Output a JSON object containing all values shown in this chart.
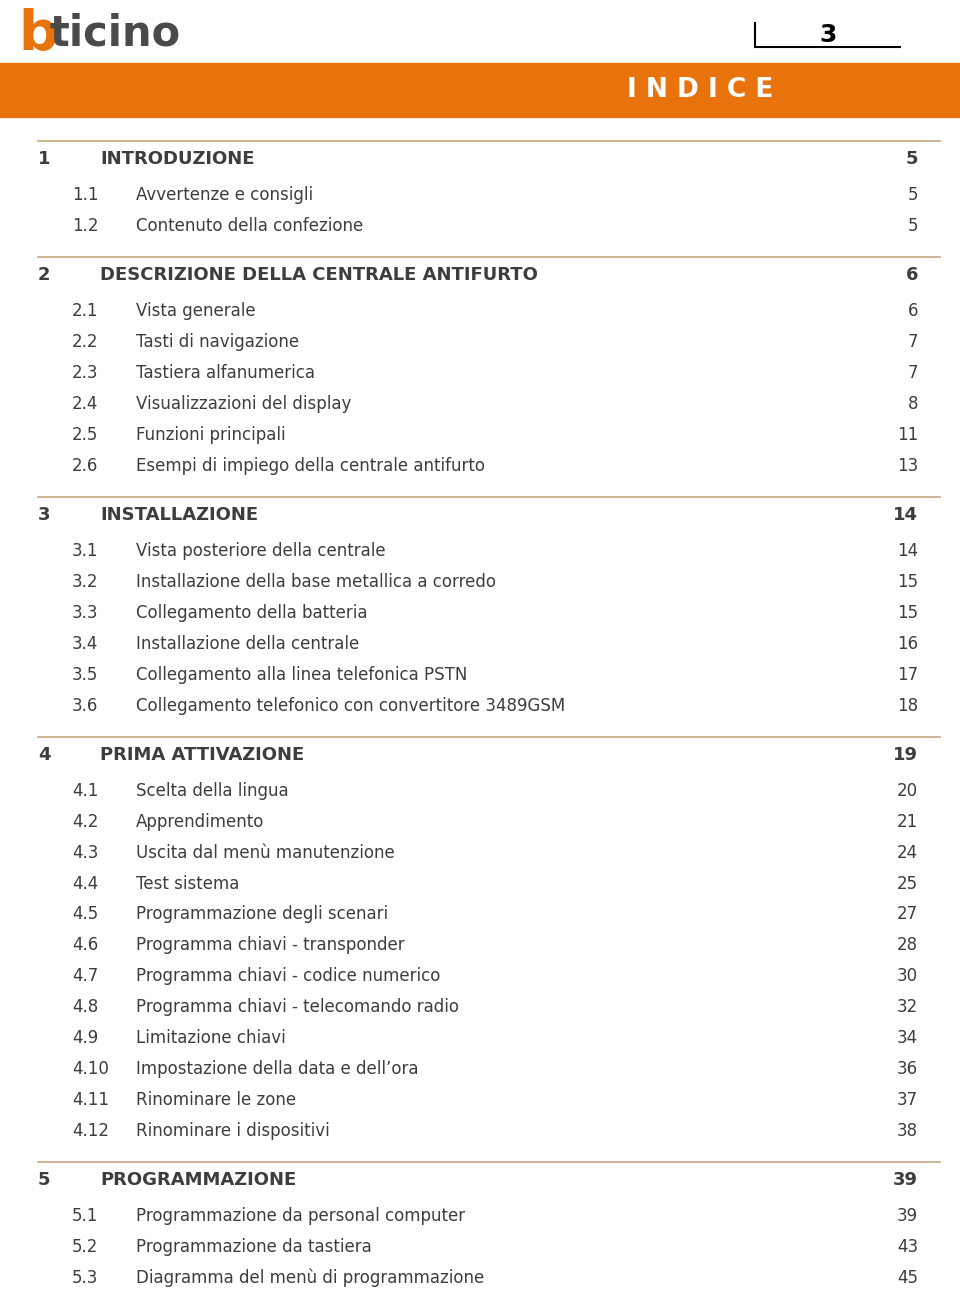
{
  "page_number": "3",
  "bg_color": "#ffffff",
  "orange_color": "#E8720C",
  "header_line_color": "#c8a882",
  "text_color": "#3d3d3d",
  "title_color": "#3d3d3d",
  "indice_text": "I N D I C E",
  "sections": [
    {
      "num": "1",
      "title": "INTRODUZIONE",
      "page": "5",
      "level": 1
    },
    {
      "num": "1.1",
      "title": "Avvertenze e consigli",
      "page": "5",
      "level": 2
    },
    {
      "num": "1.2",
      "title": "Contenuto della confezione",
      "page": "5",
      "level": 2
    },
    {
      "num": "2",
      "title": "DESCRIZIONE DELLA CENTRALE ANTIFURTO",
      "page": "6",
      "level": 1
    },
    {
      "num": "2.1",
      "title": "Vista generale",
      "page": "6",
      "level": 2
    },
    {
      "num": "2.2",
      "title": "Tasti di navigazione",
      "page": "7",
      "level": 2
    },
    {
      "num": "2.3",
      "title": "Tastiera alfanumerica",
      "page": "7",
      "level": 2
    },
    {
      "num": "2.4",
      "title": "Visualizzazioni del display",
      "page": "8",
      "level": 2
    },
    {
      "num": "2.5",
      "title": "Funzioni principali",
      "page": "11",
      "level": 2
    },
    {
      "num": "2.6",
      "title": "Esempi di impiego della centrale antifurto",
      "page": "13",
      "level": 2
    },
    {
      "num": "3",
      "title": "INSTALLAZIONE",
      "page": "14",
      "level": 1
    },
    {
      "num": "3.1",
      "title": "Vista posteriore della centrale",
      "page": "14",
      "level": 2
    },
    {
      "num": "3.2",
      "title": "Installazione della base metallica a corredo",
      "page": "15",
      "level": 2
    },
    {
      "num": "3.3",
      "title": "Collegamento della batteria",
      "page": "15",
      "level": 2
    },
    {
      "num": "3.4",
      "title": "Installazione della centrale",
      "page": "16",
      "level": 2
    },
    {
      "num": "3.5",
      "title": "Collegamento alla linea telefonica PSTN",
      "page": "17",
      "level": 2
    },
    {
      "num": "3.6",
      "title": "Collegamento telefonico con convertitore 3489GSM",
      "page": "18",
      "level": 2
    },
    {
      "num": "4",
      "title": "PRIMA ATTIVAZIONE",
      "page": "19",
      "level": 1
    },
    {
      "num": "4.1",
      "title": "Scelta della lingua",
      "page": "20",
      "level": 2
    },
    {
      "num": "4.2",
      "title": "Apprendimento",
      "page": "21",
      "level": 2
    },
    {
      "num": "4.3",
      "title": "Uscita dal menù manutenzione",
      "page": "24",
      "level": 2
    },
    {
      "num": "4.4",
      "title": "Test sistema",
      "page": "25",
      "level": 2
    },
    {
      "num": "4.5",
      "title": "Programmazione degli scenari",
      "page": "27",
      "level": 2
    },
    {
      "num": "4.6",
      "title": "Programma chiavi - transponder",
      "page": "28",
      "level": 2
    },
    {
      "num": "4.7",
      "title": "Programma chiavi - codice numerico",
      "page": "30",
      "level": 2
    },
    {
      "num": "4.8",
      "title": "Programma chiavi - telecomando radio",
      "page": "32",
      "level": 2
    },
    {
      "num": "4.9",
      "title": "Limitazione chiavi",
      "page": "34",
      "level": 2
    },
    {
      "num": "4.10",
      "title": "Impostazione della data e dell’ora",
      "page": "36",
      "level": 2
    },
    {
      "num": "4.11",
      "title": "Rinominare le zone",
      "page": "37",
      "level": 2
    },
    {
      "num": "4.12",
      "title": "Rinominare i dispositivi",
      "page": "38",
      "level": 2
    },
    {
      "num": "5",
      "title": "PROGRAMMAZIONE",
      "page": "39",
      "level": 1
    },
    {
      "num": "5.1",
      "title": "Programmazione da personal computer",
      "page": "39",
      "level": 2
    },
    {
      "num": "5.2",
      "title": "Programmazione da tastiera",
      "page": "43",
      "level": 2
    },
    {
      "num": "5.3",
      "title": "Diagramma del menù di programmazione",
      "page": "45",
      "level": 2
    }
  ]
}
